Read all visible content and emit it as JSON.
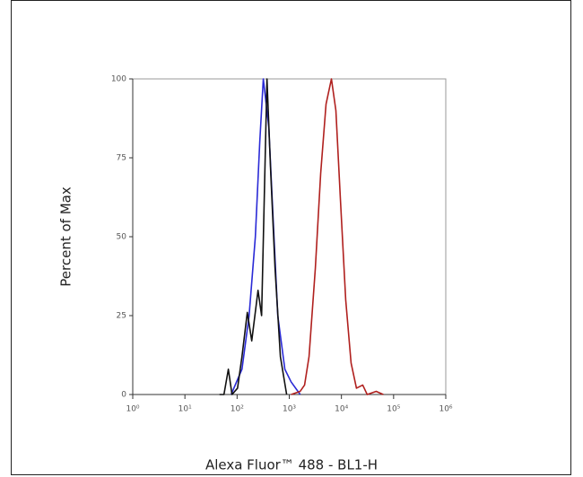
{
  "chart_data": {
    "type": "line",
    "xlabel": "Alexa Fluor™ 488 - BL1-H",
    "ylabel": "Percent of Max",
    "xscale": "log",
    "xlim": [
      1,
      1000000
    ],
    "xticks": [
      {
        "value": 1,
        "label": "10⁰"
      },
      {
        "value": 10,
        "label": "10¹"
      },
      {
        "value": 100,
        "label": "10²"
      },
      {
        "value": 1000,
        "label": "10³"
      },
      {
        "value": 10000,
        "label": "10⁴"
      },
      {
        "value": 100000,
        "label": "10⁵"
      },
      {
        "value": 1000000,
        "label": "10⁶"
      }
    ],
    "ylim": [
      0,
      100
    ],
    "yticks": [
      0,
      25,
      50,
      75,
      100
    ],
    "series": [
      {
        "color": "#2a2ad6",
        "x": [
          77,
          124,
          170,
          224,
          272,
          318,
          404,
          493,
          602,
          824,
          1086,
          1620
        ],
        "values": [
          0,
          8,
          25,
          50,
          80,
          100,
          85,
          55,
          25,
          8,
          4,
          0
        ]
      },
      {
        "color": "#111111",
        "x": [
          46,
          56,
          68,
          80,
          102,
          124,
          157,
          191,
          252,
          295,
          374,
          437,
          534,
          676,
          891
        ],
        "values": [
          0,
          0,
          8,
          0,
          2,
          12,
          26,
          17,
          33,
          25,
          100,
          72,
          40,
          12,
          0
        ]
      },
      {
        "color": "#b0201e",
        "x": [
          1086,
          1620,
          1965,
          2394,
          3162,
          4000,
          5070,
          6430,
          7830,
          9550,
          12080,
          15310,
          19410,
          25590,
          31190,
          46350,
          63500
        ],
        "values": [
          0,
          1,
          3,
          12,
          40,
          70,
          92,
          100,
          90,
          62,
          30,
          10,
          2,
          3,
          0,
          1,
          0
        ]
      }
    ]
  }
}
